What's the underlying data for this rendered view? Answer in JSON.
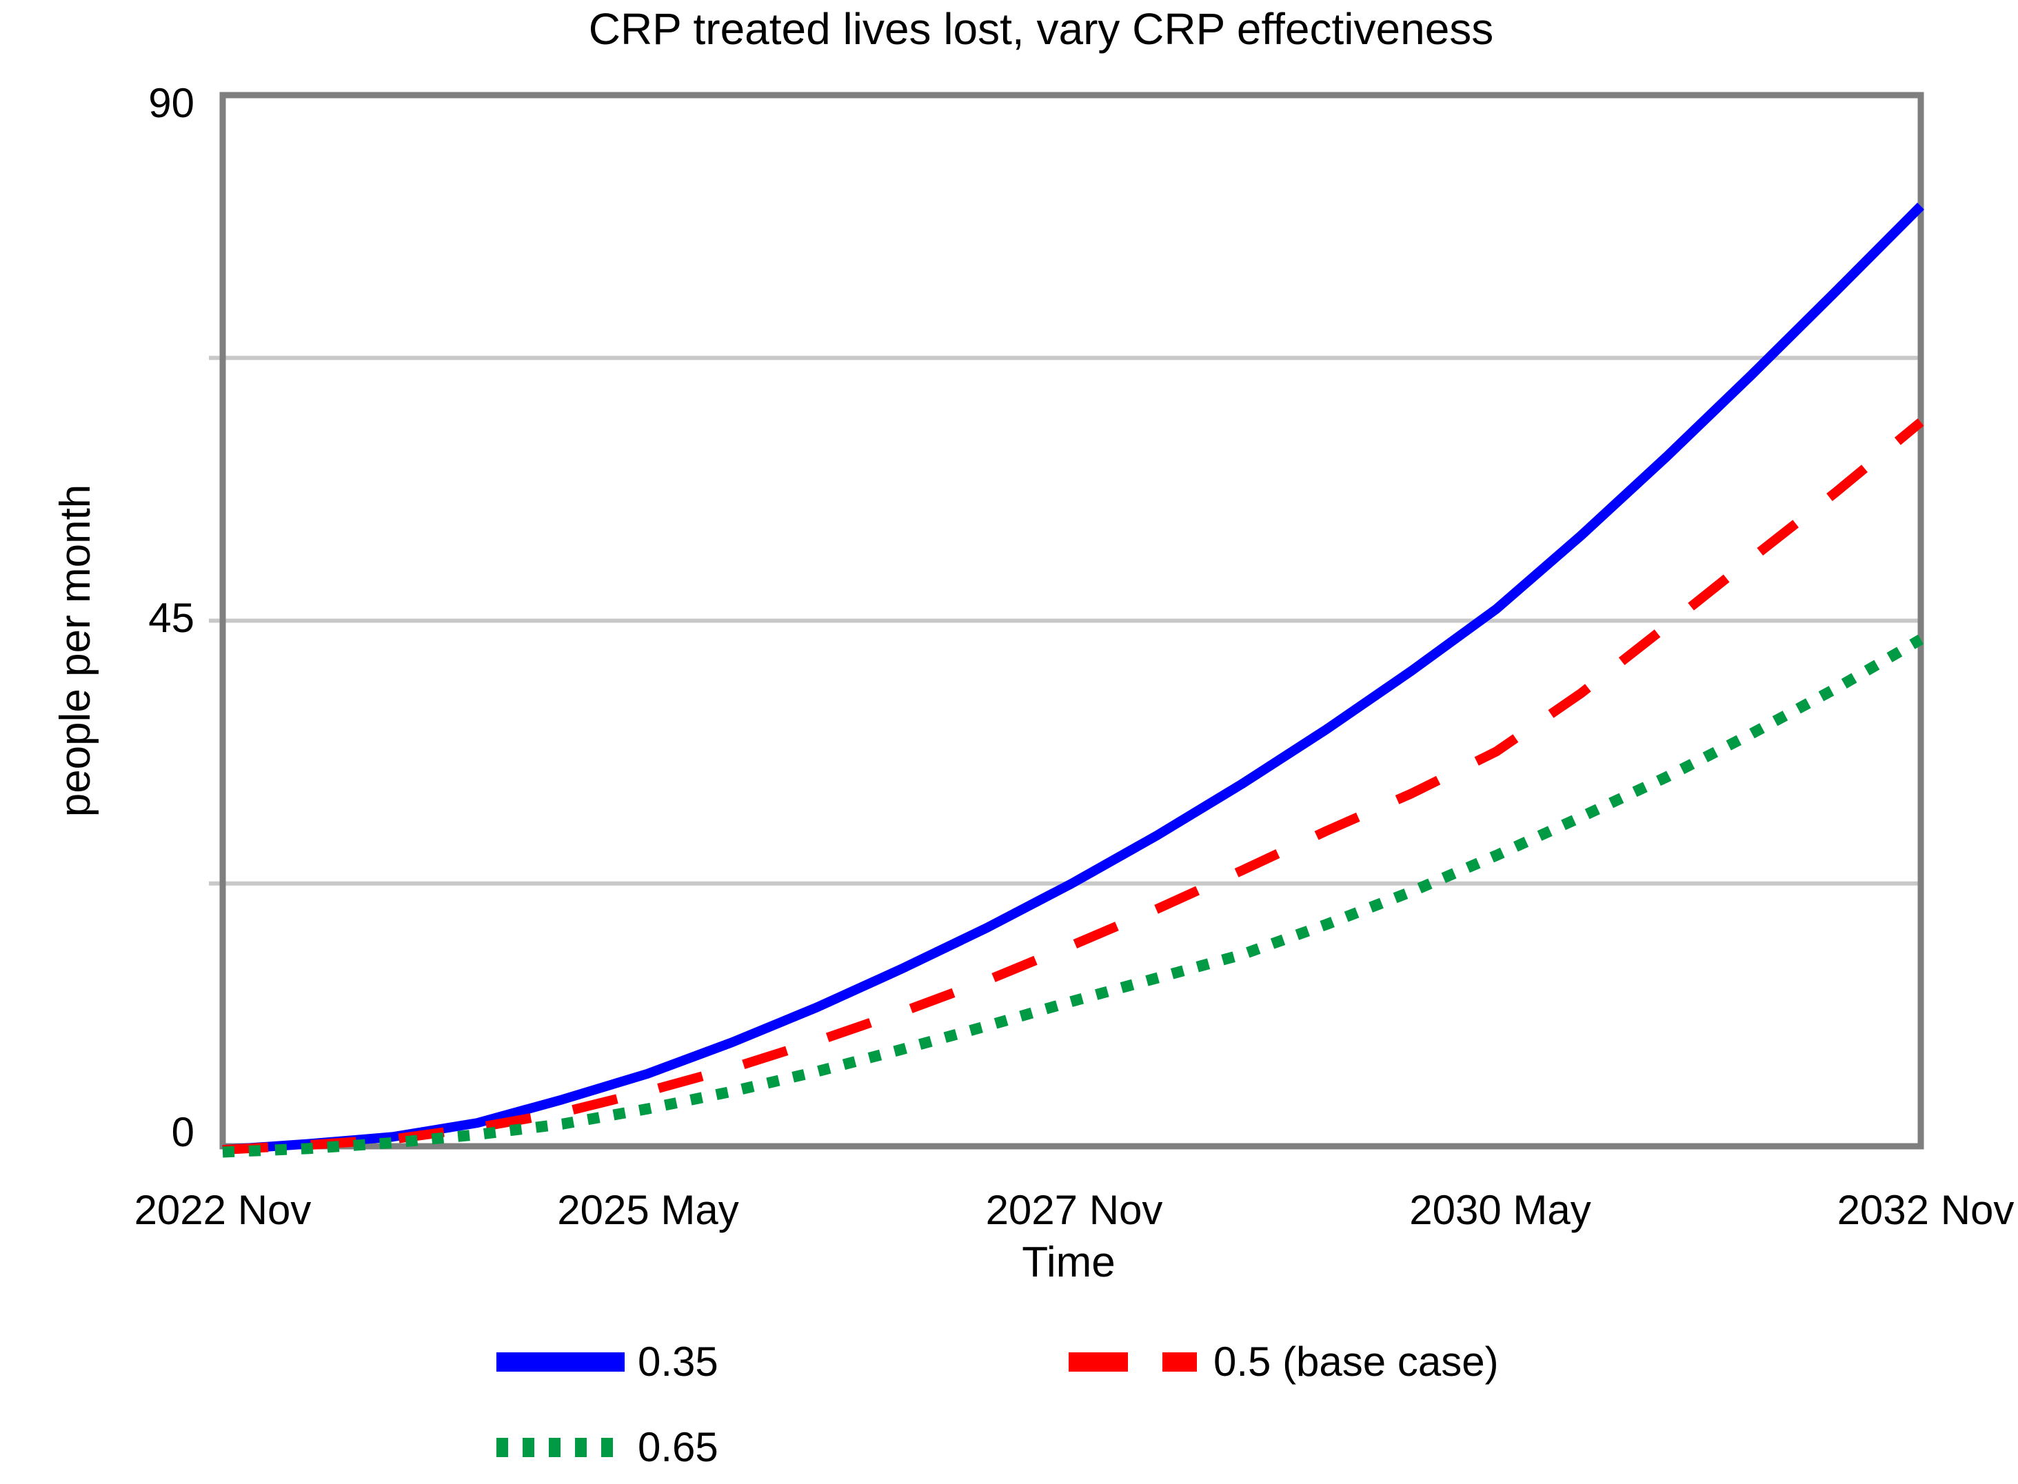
{
  "chart": {
    "title": "CRP treated lives lost, vary CRP effectiveness",
    "ylabel": "people per month",
    "xlabel": "Time",
    "y_tick_labels": [
      "90",
      "45",
      "0"
    ],
    "x_tick_labels": [
      "2022 Nov",
      "2025 May",
      "2027 Nov",
      "2030 May",
      "2032 Nov"
    ]
  },
  "colors": {
    "frame": "#7f7f7f",
    "gridline": "#c8c8c8",
    "text": "#000000"
  },
  "chart_data": {
    "type": "line",
    "title": "CRP treated lives lost, vary CRP effectiveness",
    "xlabel": "Time",
    "ylabel": "people per month",
    "xlim": [
      0,
      120
    ],
    "ylim": [
      0,
      90
    ],
    "x_unit": "months since 2022 Nov",
    "x_tick_positions": [
      0,
      30,
      60,
      90,
      120
    ],
    "x_tick_labels": [
      "2022 Nov",
      "2025 May",
      "2027 Nov",
      "2030 May",
      "2032 Nov"
    ],
    "y_tick_positions": [
      0,
      45,
      90
    ],
    "gridlines_y": [
      22.5,
      45,
      67.5
    ],
    "grid": "horizontal-only",
    "legend_position": "bottom",
    "x_months": [
      0,
      6,
      12,
      18,
      24,
      30,
      36,
      42,
      48,
      54,
      60,
      66,
      72,
      78,
      84,
      90,
      96,
      102,
      108,
      114,
      120
    ],
    "series": [
      {
        "name": "0.35",
        "color": "#0000ff",
        "style": "solid",
        "values": [
          -0.3,
          0.2,
          0.8,
          2.0,
          4.0,
          6.2,
          8.9,
          11.9,
          15.2,
          18.7,
          22.5,
          26.6,
          31.0,
          35.7,
          40.7,
          46.0,
          52.3,
          59.0,
          66.0,
          73.2,
          80.5
        ]
      },
      {
        "name": "0.5 (base case)",
        "color": "#ff0000",
        "style": "dashed",
        "values": [
          -0.3,
          0.1,
          0.6,
          1.6,
          2.9,
          4.7,
          6.7,
          9.0,
          11.5,
          14.2,
          17.2,
          20.3,
          23.6,
          27.0,
          30.2,
          33.8,
          38.8,
          44.5,
          50.3,
          56.0,
          62.0
        ]
      },
      {
        "name": "0.65",
        "color": "#009944",
        "style": "dotted",
        "values": [
          -0.5,
          -0.2,
          0.3,
          1.0,
          1.9,
          3.2,
          4.7,
          6.4,
          8.3,
          10.3,
          12.4,
          14.4,
          16.4,
          19.0,
          21.8,
          24.9,
          28.2,
          31.6,
          35.3,
          39.2,
          43.4
        ]
      }
    ]
  }
}
